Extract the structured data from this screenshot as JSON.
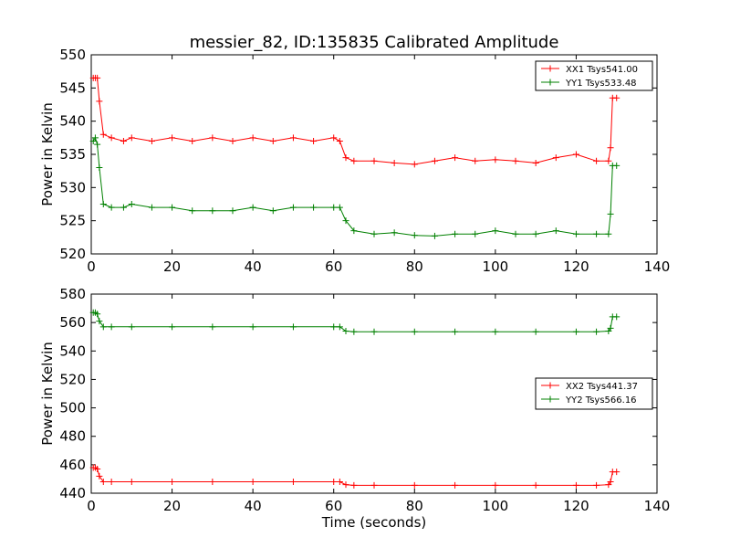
{
  "chart_data": [
    {
      "type": "line",
      "title": "messier_82, ID:135835 Calibrated Amplitude",
      "xlabel": "",
      "ylabel": "Power in Kelvin",
      "xlim": [
        0,
        140
      ],
      "ylim": [
        520,
        550
      ],
      "xticks": [
        "0",
        "20",
        "40",
        "60",
        "80",
        "100",
        "120",
        "140"
      ],
      "yticks": [
        "520",
        "525",
        "530",
        "535",
        "540",
        "545",
        "550"
      ],
      "legend_position": "top-right",
      "x": [
        0.5,
        1,
        1.5,
        2,
        3,
        5,
        8,
        10,
        15,
        20,
        25,
        30,
        35,
        40,
        45,
        50,
        55,
        60,
        61.5,
        63,
        65,
        70,
        75,
        80,
        85,
        90,
        95,
        100,
        105,
        110,
        115,
        120,
        125,
        128,
        128.5,
        129,
        130
      ],
      "series": [
        {
          "name": "XX1 Tsys541.00",
          "color": "#ff0000",
          "values": [
            546.5,
            546.5,
            546.5,
            543,
            538,
            537.5,
            537,
            537.5,
            537,
            537.5,
            537,
            537.5,
            537,
            537.5,
            537,
            537.5,
            537,
            537.5,
            537,
            534.5,
            534,
            534,
            533.7,
            533.5,
            534,
            534.5,
            534,
            534.2,
            534,
            533.7,
            534.5,
            535,
            534,
            534,
            536,
            543.5,
            543.5
          ]
        },
        {
          "name": "YY1 Tsys533.48",
          "color": "#008000",
          "values": [
            537,
            537.5,
            536.5,
            533,
            527.5,
            527,
            527,
            527.5,
            527,
            527,
            526.5,
            526.5,
            526.5,
            527,
            526.5,
            527,
            527,
            527,
            527,
            525,
            523.5,
            523,
            523.2,
            522.8,
            522.7,
            523,
            523,
            523.5,
            523,
            523,
            523.5,
            523,
            523,
            523,
            526,
            533.3,
            533.3
          ]
        }
      ]
    },
    {
      "type": "line",
      "title": "",
      "xlabel": "Time (seconds)",
      "ylabel": "Power in Kelvin",
      "xlim": [
        0,
        140
      ],
      "ylim": [
        440,
        580
      ],
      "xticks": [
        "0",
        "20",
        "40",
        "60",
        "80",
        "100",
        "120",
        "140"
      ],
      "yticks": [
        "440",
        "460",
        "480",
        "500",
        "520",
        "540",
        "560",
        "580"
      ],
      "legend_position": "center-right",
      "x": [
        0.5,
        1,
        1.5,
        2,
        3,
        5,
        10,
        20,
        30,
        40,
        50,
        60,
        61.5,
        63,
        65,
        70,
        80,
        90,
        100,
        110,
        120,
        125,
        128,
        128.5,
        129,
        130
      ],
      "series": [
        {
          "name": "XX2 Tsys441.37",
          "color": "#ff0000",
          "values": [
            458,
            458,
            457,
            452,
            448,
            448,
            448,
            448,
            448,
            448,
            448,
            448,
            448,
            446,
            445.5,
            445.5,
            445.5,
            445.5,
            445.5,
            445.5,
            445.5,
            445.5,
            446,
            448,
            455,
            455
          ]
        },
        {
          "name": "YY2 Tsys566.16",
          "color": "#008000",
          "values": [
            567,
            567,
            566,
            561,
            557,
            557,
            557,
            557,
            557,
            557,
            557,
            557,
            557,
            554,
            553.5,
            553.5,
            553.5,
            553.5,
            553.5,
            553.5,
            553.5,
            553.5,
            554,
            556,
            564,
            564
          ]
        }
      ]
    }
  ]
}
